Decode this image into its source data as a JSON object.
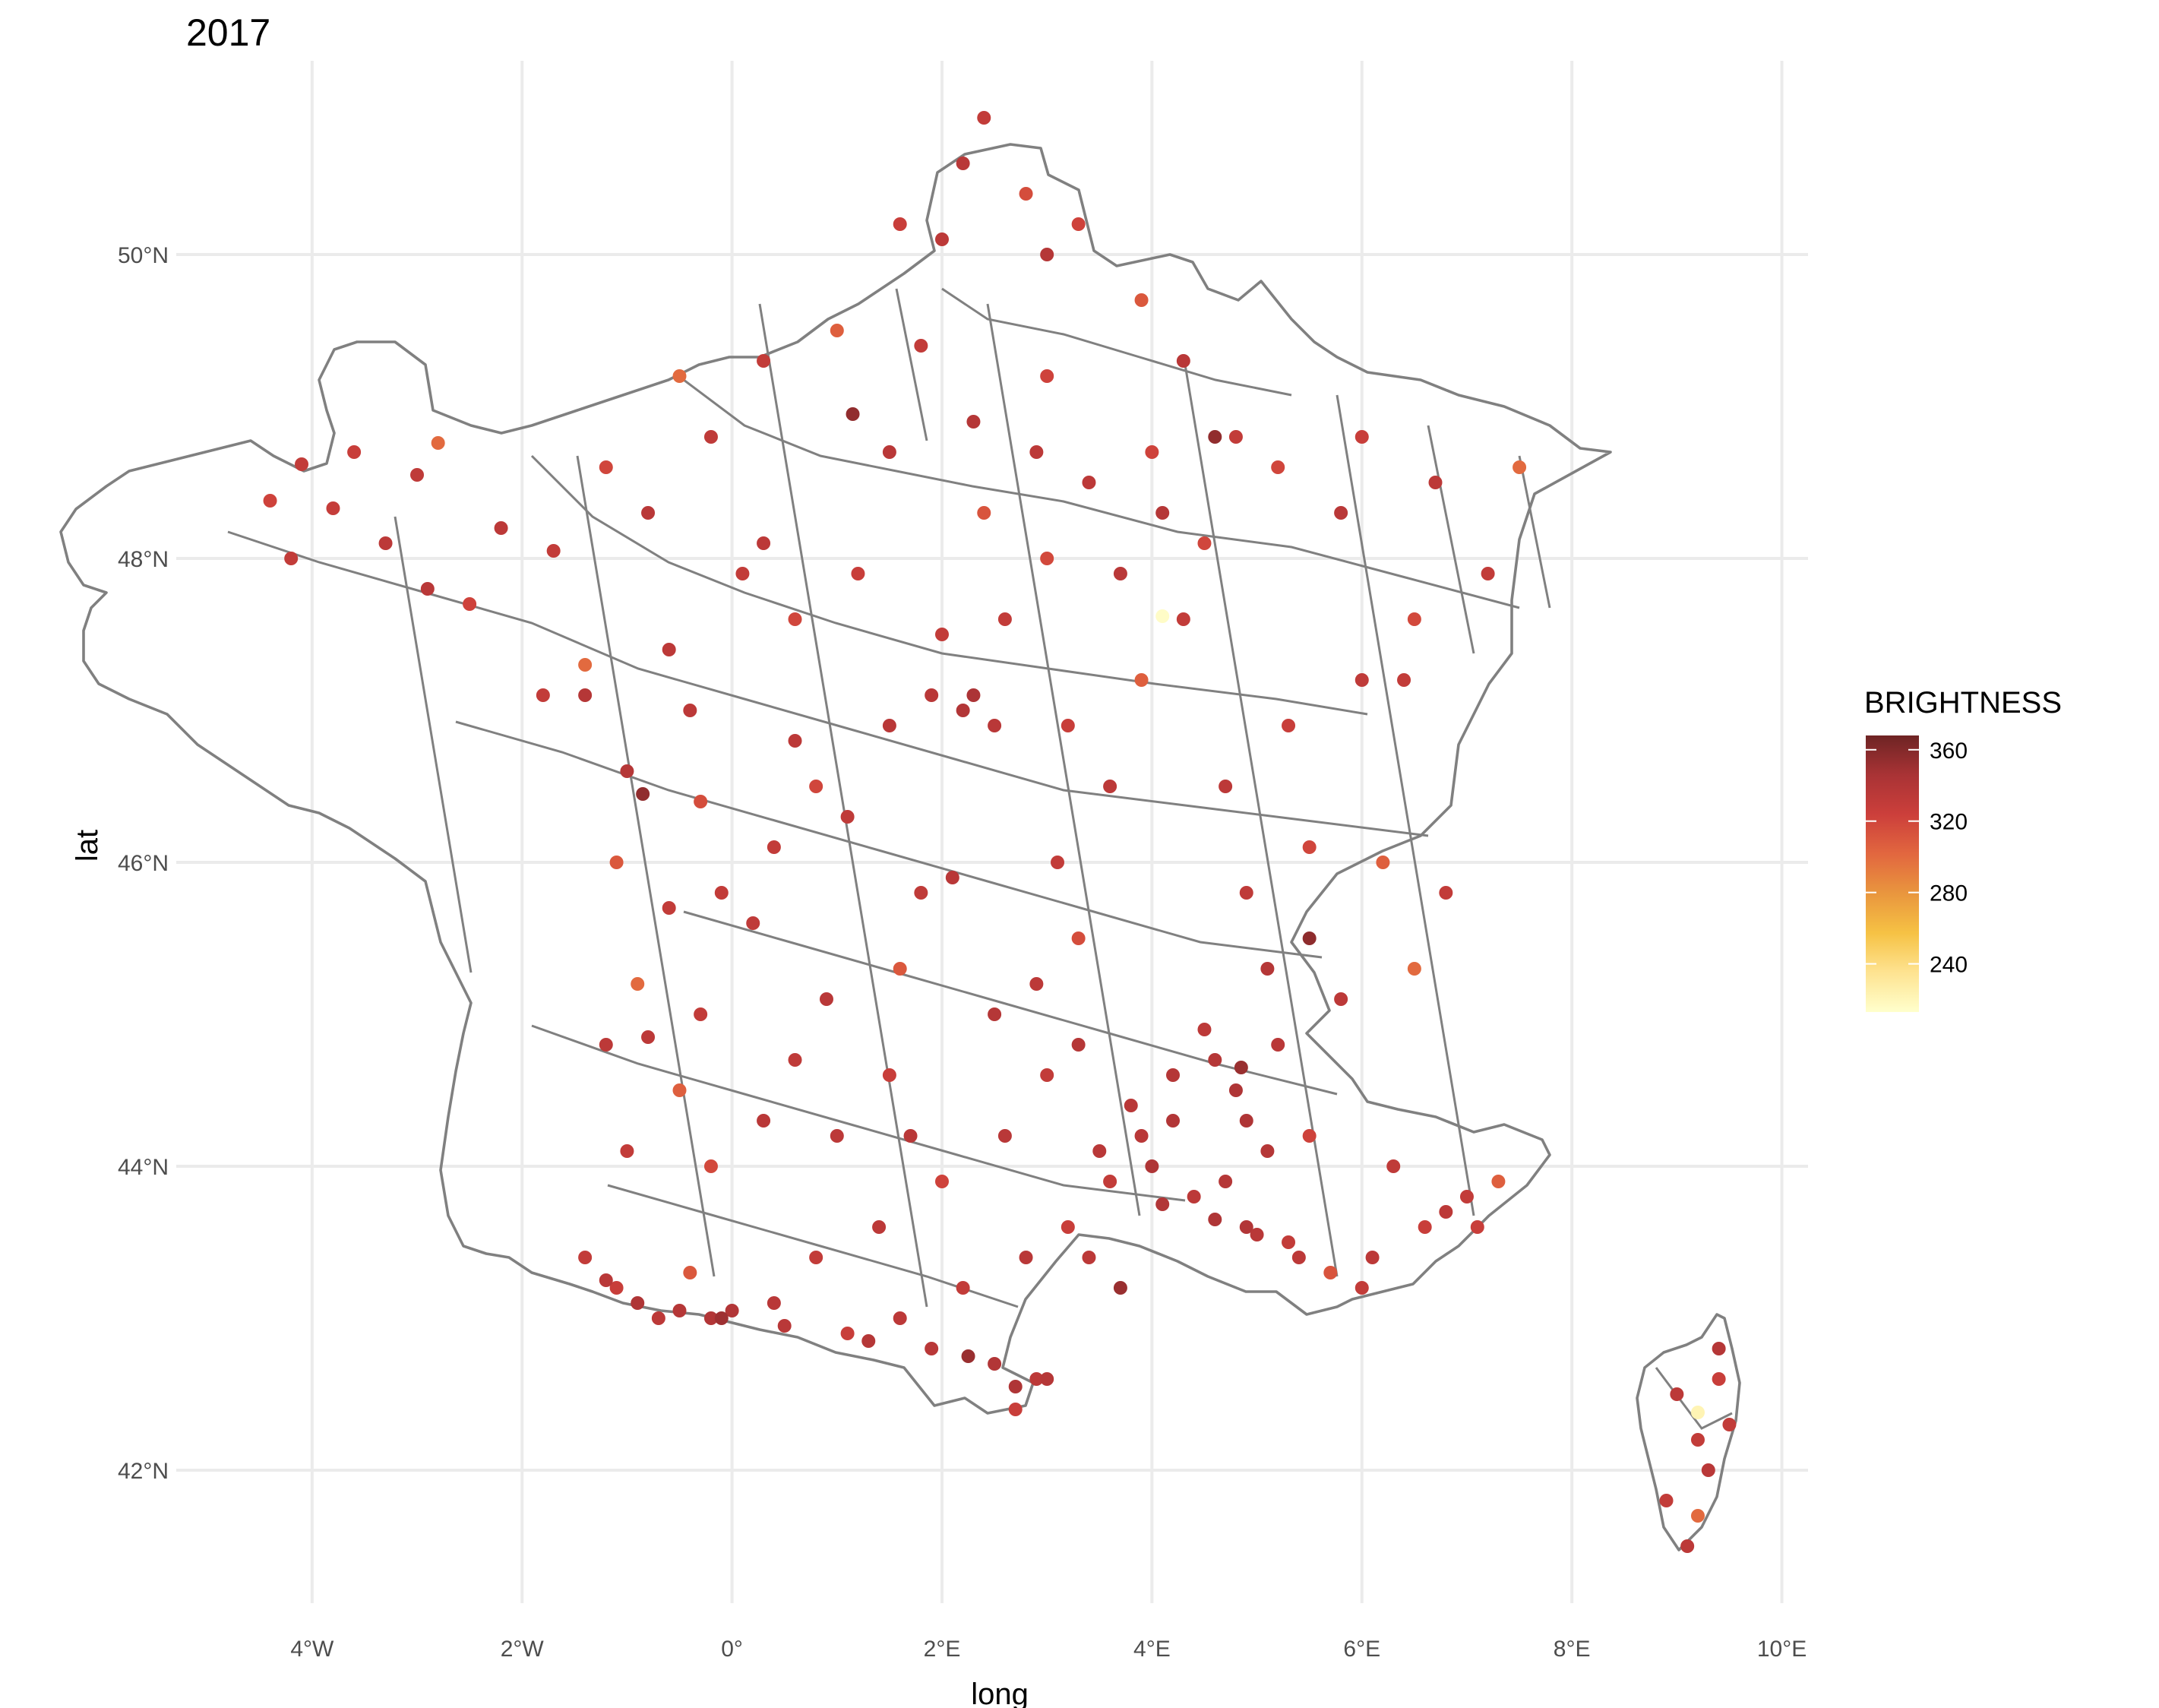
{
  "chart_data": {
    "type": "scatter",
    "title": "2017",
    "xlabel": "long",
    "ylabel": "lat",
    "xlim": [
      -5.2,
      10.3
    ],
    "ylim": [
      41.1,
      51.3
    ],
    "x_ticks": [
      {
        "value": -4,
        "label": "4°W"
      },
      {
        "value": -2,
        "label": "2°W"
      },
      {
        "value": 0,
        "label": "0°"
      },
      {
        "value": 2,
        "label": "2°E"
      },
      {
        "value": 4,
        "label": "4°E"
      },
      {
        "value": 6,
        "label": "6°E"
      },
      {
        "value": 8,
        "label": "8°E"
      },
      {
        "value": 10,
        "label": "10°E"
      }
    ],
    "y_ticks": [
      {
        "value": 42,
        "label": "42°N"
      },
      {
        "value": 44,
        "label": "44°N"
      },
      {
        "value": 46,
        "label": "46°N"
      },
      {
        "value": 48,
        "label": "48°N"
      },
      {
        "value": 50,
        "label": "50°N"
      }
    ],
    "grid": true,
    "legend": {
      "title": "BRIGHTNESS",
      "placement": "right",
      "ticks": [
        240,
        280,
        320,
        360
      ],
      "range": [
        213,
        368
      ],
      "colors": [
        "#ffffcc",
        "#fee391",
        "#f6c244",
        "#e9963e",
        "#e2673f",
        "#cc3f3b",
        "#a93335",
        "#6e2424"
      ]
    },
    "points": [
      [
        -4.4,
        48.38,
        322
      ],
      [
        -4.1,
        48.62,
        330
      ],
      [
        -3.6,
        48.7,
        326
      ],
      [
        -3.0,
        48.55,
        332
      ],
      [
        -2.8,
        48.76,
        300
      ],
      [
        -3.3,
        48.1,
        334
      ],
      [
        -4.2,
        48.0,
        330
      ],
      [
        -3.8,
        48.33,
        328
      ],
      [
        -2.2,
        48.2,
        334
      ],
      [
        -1.7,
        48.05,
        330
      ],
      [
        -2.5,
        47.7,
        322
      ],
      [
        -2.9,
        47.8,
        336
      ],
      [
        -1.2,
        48.6,
        320
      ],
      [
        -0.8,
        48.3,
        336
      ],
      [
        -1.4,
        47.3,
        300
      ],
      [
        -1.8,
        47.1,
        330
      ],
      [
        -0.6,
        47.4,
        334
      ],
      [
        0.1,
        47.9,
        330
      ],
      [
        0.6,
        47.6,
        320
      ],
      [
        -0.4,
        47.0,
        334
      ],
      [
        -1.0,
        46.6,
        338
      ],
      [
        -0.3,
        46.4,
        316
      ],
      [
        0.4,
        46.1,
        330
      ],
      [
        -1.1,
        46.0,
        310
      ],
      [
        0.2,
        45.6,
        332
      ],
      [
        -0.9,
        45.2,
        300
      ],
      [
        -0.3,
        45.0,
        330
      ],
      [
        -1.2,
        44.8,
        334
      ],
      [
        -0.5,
        44.5,
        306
      ],
      [
        0.3,
        44.3,
        336
      ],
      [
        -1.0,
        44.1,
        330
      ],
      [
        -0.2,
        44.0,
        318
      ],
      [
        1.0,
        44.2,
        334
      ],
      [
        1.5,
        44.6,
        326
      ],
      [
        0.9,
        45.1,
        336
      ],
      [
        1.6,
        45.3,
        310
      ],
      [
        1.8,
        45.8,
        332
      ],
      [
        0.8,
        46.5,
        320
      ],
      [
        1.5,
        46.9,
        336
      ],
      [
        2.3,
        47.1,
        344
      ],
      [
        2.0,
        47.5,
        330
      ],
      [
        1.2,
        47.9,
        326
      ],
      [
        2.4,
        48.3,
        312
      ],
      [
        1.5,
        48.7,
        336
      ],
      [
        2.3,
        48.9,
        338
      ],
      [
        3.0,
        49.2,
        322
      ],
      [
        1.8,
        49.4,
        330
      ],
      [
        1.0,
        49.5,
        306
      ],
      [
        0.3,
        49.3,
        330
      ],
      [
        -0.5,
        49.2,
        300
      ],
      [
        1.6,
        50.2,
        326
      ],
      [
        2.2,
        50.6,
        336
      ],
      [
        2.8,
        50.4,
        316
      ],
      [
        2.4,
        50.9,
        330
      ],
      [
        3.3,
        50.2,
        322
      ],
      [
        3.9,
        49.7,
        310
      ],
      [
        4.3,
        49.3,
        336
      ],
      [
        4.8,
        48.8,
        330
      ],
      [
        4.1,
        48.3,
        338
      ],
      [
        5.2,
        48.6,
        320
      ],
      [
        6.0,
        48.8,
        326
      ],
      [
        6.7,
        48.5,
        334
      ],
      [
        7.5,
        48.6,
        300
      ],
      [
        7.2,
        47.9,
        330
      ],
      [
        6.5,
        47.6,
        318
      ],
      [
        6.0,
        47.2,
        332
      ],
      [
        5.3,
        46.9,
        326
      ],
      [
        4.7,
        46.5,
        334
      ],
      [
        5.5,
        46.1,
        320
      ],
      [
        6.2,
        46.0,
        306
      ],
      [
        6.8,
        45.8,
        330
      ],
      [
        6.5,
        45.3,
        300
      ],
      [
        5.8,
        45.1,
        334
      ],
      [
        5.2,
        44.8,
        336
      ],
      [
        4.8,
        44.5,
        342
      ],
      [
        4.5,
        44.9,
        334
      ],
      [
        4.2,
        44.6,
        338
      ],
      [
        3.9,
        44.2,
        336
      ],
      [
        3.6,
        43.9,
        330
      ],
      [
        3.2,
        43.6,
        326
      ],
      [
        4.4,
        43.8,
        334
      ],
      [
        4.9,
        43.6,
        340
      ],
      [
        5.3,
        43.5,
        330
      ],
      [
        5.7,
        43.3,
        312
      ],
      [
        6.1,
        43.4,
        334
      ],
      [
        6.6,
        43.6,
        326
      ],
      [
        7.0,
        43.8,
        330
      ],
      [
        7.3,
        43.9,
        306
      ],
      [
        6.3,
        44.0,
        332
      ],
      [
        5.5,
        44.2,
        322
      ],
      [
        4.7,
        43.9,
        338
      ],
      [
        2.8,
        43.4,
        336
      ],
      [
        2.2,
        43.2,
        330
      ],
      [
        1.6,
        43.0,
        334
      ],
      [
        1.1,
        42.9,
        326
      ],
      [
        2.5,
        42.7,
        340
      ],
      [
        2.9,
        42.6,
        334
      ],
      [
        2.7,
        42.4,
        326
      ],
      [
        0.4,
        43.1,
        336
      ],
      [
        -0.2,
        43.0,
        340
      ],
      [
        -0.7,
        43.0,
        334
      ],
      [
        -1.1,
        43.2,
        326
      ],
      [
        -1.4,
        43.4,
        330
      ],
      [
        -0.4,
        43.3,
        310
      ],
      [
        0.8,
        43.4,
        330
      ],
      [
        1.4,
        43.6,
        334
      ],
      [
        2.0,
        43.9,
        322
      ],
      [
        2.6,
        44.2,
        336
      ],
      [
        3.0,
        44.6,
        330
      ],
      [
        2.5,
        45.0,
        338
      ],
      [
        3.3,
        45.5,
        316
      ],
      [
        3.1,
        46.0,
        330
      ],
      [
        3.6,
        46.5,
        334
      ],
      [
        3.2,
        46.9,
        326
      ],
      [
        3.9,
        47.2,
        306
      ],
      [
        4.3,
        47.6,
        330
      ],
      [
        3.7,
        47.9,
        336
      ],
      [
        4.1,
        47.62,
        215
      ],
      [
        4.0,
        48.7,
        322
      ],
      [
        3.4,
        48.5,
        334
      ],
      [
        3.0,
        48.0,
        318
      ],
      [
        2.6,
        47.6,
        330
      ],
      [
        9.0,
        42.5,
        334
      ],
      [
        9.2,
        42.2,
        330
      ],
      [
        9.3,
        42.0,
        336
      ],
      [
        9.4,
        42.6,
        326
      ],
      [
        9.2,
        42.38,
        222
      ],
      [
        8.9,
        41.8,
        330
      ],
      [
        9.1,
        41.5,
        334
      ],
      [
        9.4,
        42.8,
        338
      ],
      [
        9.5,
        42.3,
        330
      ],
      [
        9.2,
        41.7,
        300
      ],
      [
        -1.2,
        43.25,
        336
      ],
      [
        -0.9,
        43.1,
        342
      ],
      [
        -0.5,
        43.05,
        338
      ],
      [
        0.0,
        43.05,
        340
      ],
      [
        0.5,
        42.95,
        336
      ],
      [
        1.3,
        42.85,
        338
      ],
      [
        1.9,
        42.8,
        336
      ],
      [
        2.7,
        42.55,
        342
      ],
      [
        3.0,
        42.6,
        338
      ],
      [
        3.4,
        43.4,
        334
      ],
      [
        4.1,
        43.75,
        340
      ],
      [
        4.6,
        43.65,
        342
      ],
      [
        5.0,
        43.55,
        336
      ],
      [
        5.4,
        43.4,
        334
      ],
      [
        4.2,
        44.3,
        340
      ],
      [
        4.0,
        44.0,
        342
      ],
      [
        3.8,
        44.4,
        336
      ],
      [
        4.6,
        44.7,
        338
      ],
      [
        4.9,
        44.3,
        342
      ],
      [
        3.5,
        44.1,
        336
      ],
      [
        -0.8,
        44.85,
        334
      ],
      [
        1.9,
        47.1,
        336
      ],
      [
        2.2,
        47.0,
        340
      ],
      [
        2.5,
        46.9,
        336
      ],
      [
        -1.4,
        47.1,
        338
      ],
      [
        -0.6,
        45.7,
        330
      ],
      [
        3.3,
        44.8,
        338
      ],
      [
        2.9,
        45.2,
        334
      ],
      [
        5.1,
        44.1,
        338
      ],
      [
        6.0,
        43.2,
        330
      ],
      [
        6.8,
        43.7,
        334
      ],
      [
        7.1,
        43.6,
        326
      ],
      [
        0.6,
        46.8,
        334
      ],
      [
        1.1,
        46.3,
        332
      ],
      [
        2.9,
        48.7,
        334
      ],
      [
        4.5,
        48.1,
        320
      ],
      [
        5.8,
        48.3,
        336
      ],
      [
        6.4,
        47.2,
        330
      ],
      [
        0.3,
        48.1,
        334
      ],
      [
        -0.2,
        48.8,
        332
      ],
      [
        3.0,
        50.0,
        338
      ],
      [
        2.0,
        50.1,
        334
      ],
      [
        4.9,
        45.8,
        332
      ],
      [
        5.1,
        45.3,
        338
      ],
      [
        1.7,
        44.2,
        336
      ],
      [
        0.6,
        44.7,
        332
      ],
      [
        -0.1,
        45.8,
        330
      ],
      [
        2.1,
        45.9,
        336
      ],
      [
        1.15,
        48.95,
        355
      ],
      [
        -0.85,
        46.45,
        355
      ],
      [
        2.25,
        42.75,
        352
      ],
      [
        4.6,
        48.8,
        355
      ],
      [
        5.5,
        45.5,
        356
      ],
      [
        3.7,
        43.2,
        352
      ],
      [
        -0.1,
        43.0,
        350
      ],
      [
        4.85,
        44.65,
        352
      ]
    ]
  }
}
